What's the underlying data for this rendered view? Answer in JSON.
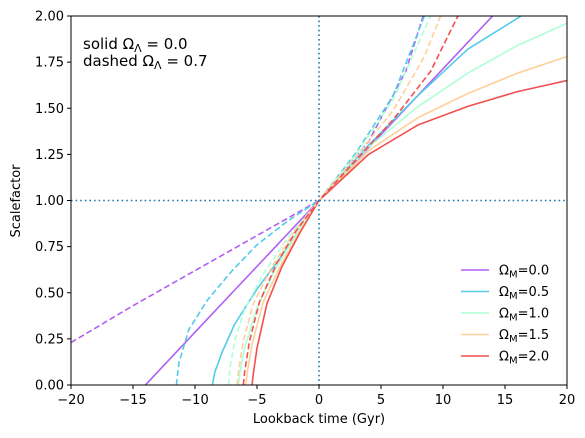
{
  "chart_data": {
    "type": "line",
    "xlabel": "Lookback time (Gyr)",
    "ylabel": "Scalefactor",
    "xlim": [
      -20,
      20
    ],
    "ylim": [
      0.0,
      2.0
    ],
    "x_ticks": [
      "−20",
      "−15",
      "−10",
      "−5",
      "0",
      "5",
      "10",
      "15",
      "20"
    ],
    "y_ticks": [
      "0.00",
      "0.25",
      "0.50",
      "0.75",
      "1.00",
      "1.25",
      "1.50",
      "1.75",
      "2.00"
    ],
    "annotation": {
      "line1": "solid Ω_Λ = 0.0",
      "line2": "dashed Ω_Λ = 0.7"
    },
    "reference_lines": {
      "vertical_x": 0,
      "horizontal_y": 1.0,
      "style": "dotted",
      "color": "#1f77b4"
    },
    "legend": {
      "location": "lower-right",
      "labels": [
        "Ω_M=0.0",
        "Ω_M=0.5",
        "Ω_M=1.0",
        "Ω_M=1.5",
        "Ω_M=2.0"
      ]
    },
    "series": [
      {
        "name": "Ω_M=0.0",
        "color": "#b05ff5",
        "style": "solid",
        "x": [
          -14.0,
          -10.0,
          -5.0,
          0,
          5.0,
          10.0,
          14.0
        ],
        "y": [
          0.0,
          0.286,
          0.643,
          1.0,
          1.357,
          1.714,
          2.0
        ]
      },
      {
        "name": "Ω_M=0.5",
        "color": "#53cbe9",
        "style": "solid",
        "x": [
          -8.6,
          -8.4,
          -7.8,
          -6.8,
          -5.0,
          -3.0,
          0,
          4.0,
          8.0,
          12.0,
          16.3
        ],
        "y": [
          0.0,
          0.07,
          0.18,
          0.33,
          0.52,
          0.7,
          1.0,
          1.3,
          1.57,
          1.82,
          2.0
        ]
      },
      {
        "name": "Ω_M=1.0",
        "color": "#b0ffd6",
        "style": "solid",
        "x": [
          -6.5,
          -6.4,
          -6.0,
          -5.0,
          -3.5,
          -2.0,
          0,
          4.0,
          8.0,
          12.0,
          16.0,
          20.0
        ],
        "y": [
          0.0,
          0.06,
          0.2,
          0.42,
          0.63,
          0.8,
          1.0,
          1.29,
          1.51,
          1.69,
          1.84,
          1.96
        ]
      },
      {
        "name": "Ω_M=1.5",
        "color": "#ffcf9a",
        "style": "solid",
        "x": [
          -5.9,
          -5.8,
          -5.4,
          -4.5,
          -3.0,
          -1.5,
          0,
          4.0,
          8.0,
          12.0,
          16.0,
          20.0
        ],
        "y": [
          0.0,
          0.06,
          0.22,
          0.45,
          0.66,
          0.84,
          1.0,
          1.27,
          1.45,
          1.58,
          1.69,
          1.78
        ]
      },
      {
        "name": "Ω_M=2.0",
        "color": "#f0504f",
        "style": "solid",
        "x": [
          -5.4,
          -5.3,
          -5.0,
          -4.2,
          -3.0,
          -1.5,
          0,
          4.0,
          8.0,
          12.0,
          16.0,
          20.0
        ],
        "y": [
          0.0,
          0.06,
          0.2,
          0.44,
          0.64,
          0.83,
          1.0,
          1.25,
          1.41,
          1.51,
          1.59,
          1.65
        ]
      },
      {
        "name": "Ω_M=0.0, Ω_Λ=0.7",
        "color": "#b05ff5",
        "style": "dashed",
        "x": [
          -20.0,
          -15.0,
          -10.0,
          -5.0,
          0,
          4.0,
          7.0,
          8.4
        ],
        "y": [
          0.23,
          0.43,
          0.62,
          0.81,
          1.0,
          1.32,
          1.7,
          2.0
        ]
      },
      {
        "name": "Ω_M=0.5, Ω_Λ=0.7",
        "color": "#53cbe9",
        "style": "dashed",
        "x": [
          -11.5,
          -11.3,
          -10.5,
          -9.0,
          -7.0,
          -5.0,
          -2.5,
          0,
          3.0,
          6.0,
          8.5
        ],
        "y": [
          0.0,
          0.12,
          0.3,
          0.46,
          0.62,
          0.76,
          0.89,
          1.0,
          1.26,
          1.57,
          2.0
        ]
      },
      {
        "name": "Ω_M=1.0, Ω_Λ=0.7",
        "color": "#b0ffd6",
        "style": "dashed",
        "x": [
          -7.3,
          -7.2,
          -6.8,
          -6.0,
          -4.5,
          -2.5,
          0,
          3.0,
          6.0,
          9.0
        ],
        "y": [
          0.0,
          0.08,
          0.24,
          0.41,
          0.6,
          0.8,
          1.0,
          1.25,
          1.55,
          2.0
        ]
      },
      {
        "name": "Ω_M=1.5, Ω_Λ=0.7",
        "color": "#ffcf9a",
        "style": "dashed",
        "x": [
          -6.6,
          -6.5,
          -6.1,
          -5.3,
          -3.8,
          -2.0,
          0,
          3.0,
          6.0,
          8.5,
          9.8
        ],
        "y": [
          0.0,
          0.07,
          0.24,
          0.44,
          0.64,
          0.83,
          1.0,
          1.24,
          1.49,
          1.78,
          2.0
        ]
      },
      {
        "name": "Ω_M=2.0, Ω_Λ=0.7",
        "color": "#f0504f",
        "style": "dashed",
        "x": [
          -6.1,
          -6.0,
          -5.6,
          -4.8,
          -3.4,
          -1.8,
          0,
          3.0,
          6.0,
          9.0,
          11.2
        ],
        "y": [
          0.0,
          0.07,
          0.24,
          0.45,
          0.66,
          0.84,
          1.0,
          1.22,
          1.44,
          1.7,
          2.0
        ]
      }
    ]
  }
}
